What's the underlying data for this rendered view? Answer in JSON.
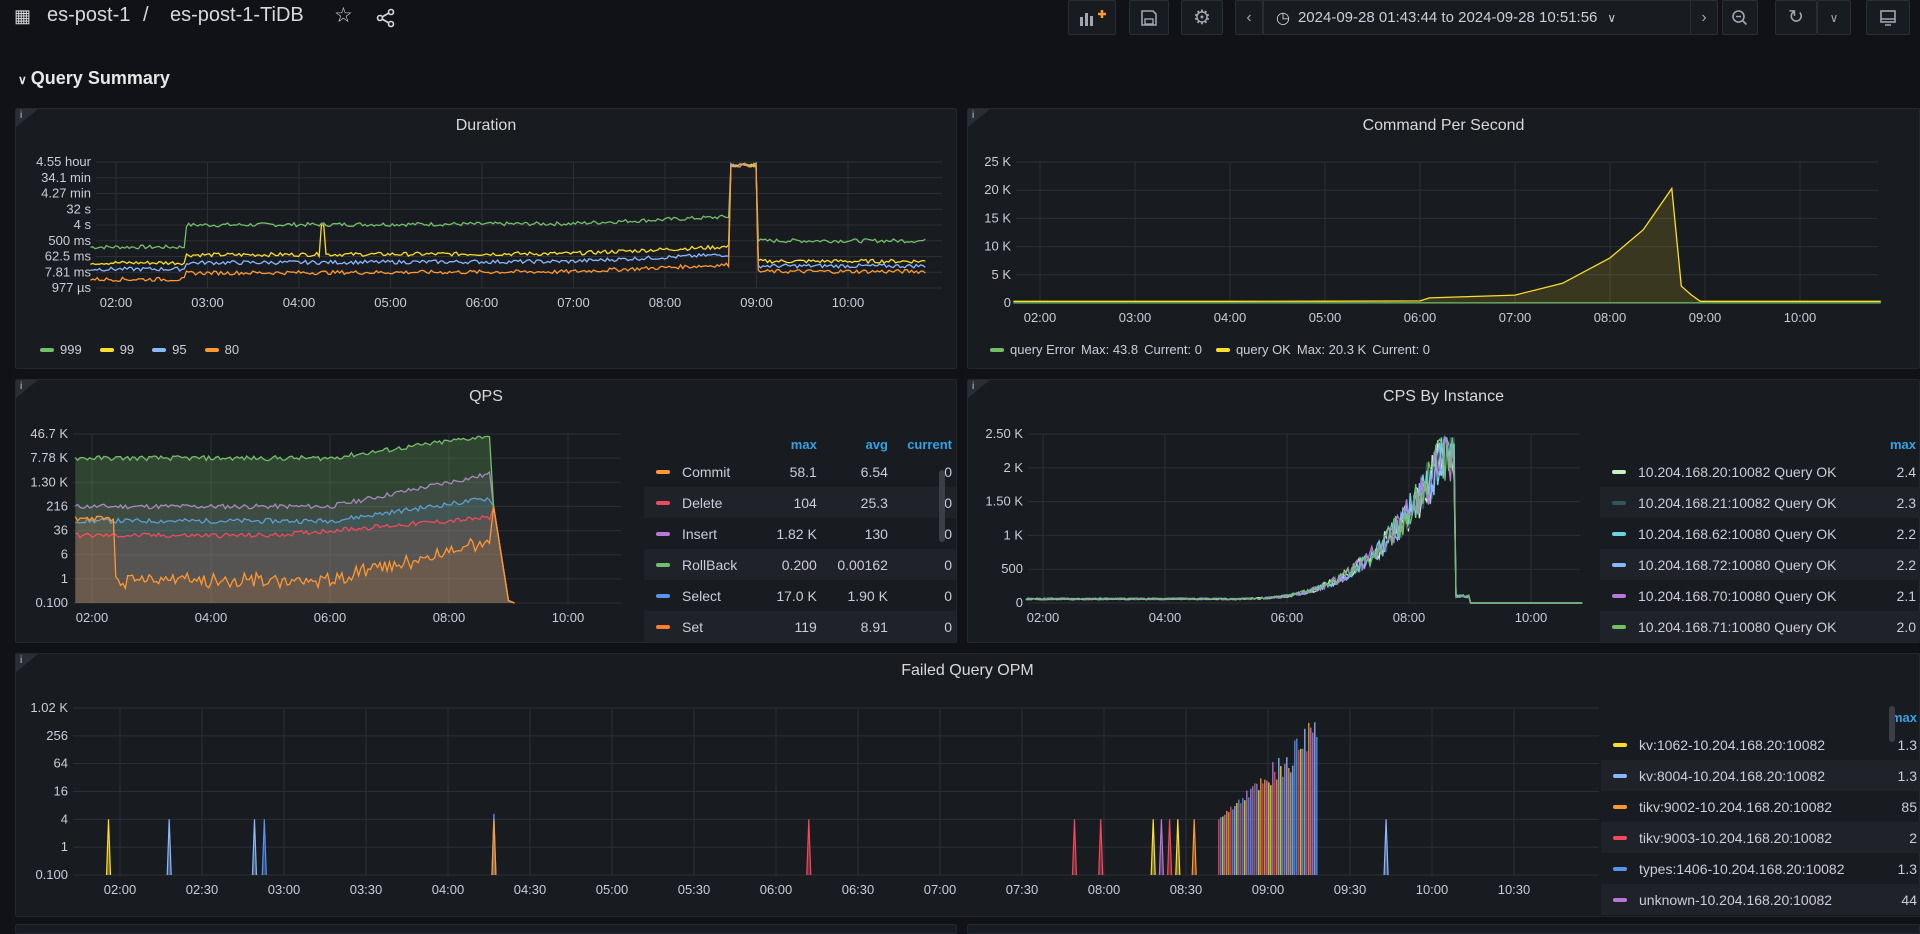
{
  "breadcrumb": {
    "folder": "es-post-1",
    "sep": "/",
    "dashboard": "es-post-1-TiDB"
  },
  "timerange": {
    "label": "2024-09-28 01:43:44 to 2024-09-28 10:51:56"
  },
  "row": {
    "title": "Query Summary"
  },
  "panels": {
    "duration": {
      "title": "Duration",
      "info": "i"
    },
    "cps": {
      "title": "Command Per Second",
      "info": "i"
    },
    "qps": {
      "title": "QPS",
      "info": "i"
    },
    "cpsinst": {
      "title": "CPS By Instance",
      "info": "i"
    },
    "failed": {
      "title": "Failed Query OPM",
      "info": "i"
    }
  },
  "colors": {
    "green": "#73bf69",
    "yellow": "#fade2a",
    "blue": "#5794f2",
    "lightblue": "#8ab8ff",
    "orange": "#ff9830",
    "red": "#f2495c",
    "purple": "#b877d9",
    "darkgreen": "#37872d",
    "teal": "#6ed0e0"
  },
  "chart_data": [
    {
      "type": "line",
      "title": "Duration",
      "y_ticks": [
        "4.55 hour",
        "34.1 min",
        "4.27 min",
        "32 s",
        "4 s",
        "500 ms",
        "62.5 ms",
        "7.81 ms",
        "977 µs"
      ],
      "x_ticks": [
        "02:00",
        "03:00",
        "04:00",
        "05:00",
        "06:00",
        "07:00",
        "08:00",
        "09:00",
        "10:00"
      ],
      "series": [
        {
          "name": "999",
          "color": "#73bf69"
        },
        {
          "name": "99",
          "color": "#fade2a"
        },
        {
          "name": "95",
          "color": "#8ab8ff"
        },
        {
          "name": "80",
          "color": "#ff9830"
        }
      ]
    },
    {
      "type": "area",
      "title": "Command Per Second",
      "y_ticks": [
        "25 K",
        "20 K",
        "15 K",
        "10 K",
        "5 K",
        "0"
      ],
      "ylim": [
        0,
        25000
      ],
      "x_ticks": [
        "02:00",
        "03:00",
        "04:00",
        "05:00",
        "06:00",
        "07:00",
        "08:00",
        "09:00",
        "10:00"
      ],
      "series": [
        {
          "name": "query Error",
          "color": "#73bf69",
          "max": "Max: 43.8",
          "current": "Current: 0"
        },
        {
          "name": "query OK",
          "color": "#fade2a",
          "max": "Max: 20.3 K",
          "current": "Current: 0"
        }
      ],
      "query_ok_points": [
        [
          1.72,
          300
        ],
        [
          2,
          300
        ],
        [
          3,
          300
        ],
        [
          4,
          300
        ],
        [
          5,
          320
        ],
        [
          6,
          380
        ],
        [
          6.1,
          900
        ],
        [
          7,
          1400
        ],
        [
          7.5,
          3500
        ],
        [
          8,
          8000
        ],
        [
          8.35,
          13000
        ],
        [
          8.65,
          20300
        ],
        [
          8.75,
          3000
        ],
        [
          8.85,
          1500
        ],
        [
          8.95,
          300
        ],
        [
          10.85,
          300
        ]
      ]
    },
    {
      "type": "area",
      "title": "QPS",
      "y_ticks": [
        "46.7 K",
        "7.78 K",
        "1.30 K",
        "216",
        "36",
        "6",
        "1",
        "0.100"
      ],
      "x_ticks": [
        "02:00",
        "04:00",
        "06:00",
        "08:00",
        "10:00"
      ],
      "columns": [
        "max",
        "avg",
        "current"
      ],
      "rows": [
        {
          "name": "Commit",
          "color": "#ff9830",
          "max": "58.1",
          "avg": "6.54",
          "current": "0"
        },
        {
          "name": "Delete",
          "color": "#f2495c",
          "max": "104",
          "avg": "25.3",
          "current": "0"
        },
        {
          "name": "Insert",
          "color": "#b877d9",
          "max": "1.82 K",
          "avg": "130",
          "current": "0"
        },
        {
          "name": "RollBack",
          "color": "#73bf69",
          "max": "0.200",
          "avg": "0.00162",
          "current": "0"
        },
        {
          "name": "Select",
          "color": "#5794f2",
          "max": "17.0 K",
          "avg": "1.90 K",
          "current": "0"
        },
        {
          "name": "Set",
          "color": "#ff7f2a",
          "max": "119",
          "avg": "8.91",
          "current": "0"
        }
      ]
    },
    {
      "type": "line",
      "title": "CPS By Instance",
      "y_ticks": [
        "2.50 K",
        "2 K",
        "1.50 K",
        "1 K",
        "500",
        "0"
      ],
      "ylim": [
        0,
        2500
      ],
      "x_ticks": [
        "02:00",
        "04:00",
        "06:00",
        "08:00",
        "10:00"
      ],
      "columns": [
        "max"
      ],
      "rows": [
        {
          "name": "10.204.168.20:10082 Query OK",
          "color": "#c8f2c2",
          "max": "2.4"
        },
        {
          "name": "10.204.168.21:10082 Query OK",
          "color": "#2f575e",
          "max": "2.3"
        },
        {
          "name": "10.204.168.62:10080 Query OK",
          "color": "#6ed0e0",
          "max": "2.2"
        },
        {
          "name": "10.204.168.72:10080 Query OK",
          "color": "#8ab8ff",
          "max": "2.2"
        },
        {
          "name": "10.204.168.70:10080 Query OK",
          "color": "#b877d9",
          "max": "2.1"
        },
        {
          "name": "10.204.168.71:10080 Query OK",
          "color": "#73bf69",
          "max": "2.0"
        }
      ]
    },
    {
      "type": "bar",
      "title": "Failed Query OPM",
      "y_ticks": [
        "1.02 K",
        "256",
        "64",
        "16",
        "4",
        "1",
        "0.100"
      ],
      "x_ticks": [
        "02:00",
        "02:30",
        "03:00",
        "03:30",
        "04:00",
        "04:30",
        "05:00",
        "05:30",
        "06:00",
        "06:30",
        "07:00",
        "07:30",
        "08:00",
        "08:30",
        "09:00",
        "09:30",
        "10:00",
        "10:30"
      ],
      "columns": [
        "max"
      ],
      "rows": [
        {
          "name": "kv:1062-10.204.168.20:10082",
          "color": "#fade2a",
          "max": "1.3"
        },
        {
          "name": "kv:8004-10.204.168.20:10082",
          "color": "#8ab8ff",
          "max": "1.3"
        },
        {
          "name": "tikv:9002-10.204.168.20:10082",
          "color": "#ff9830",
          "max": "85"
        },
        {
          "name": "tikv:9003-10.204.168.20:10082",
          "color": "#f2495c",
          "max": "2"
        },
        {
          "name": "types:1406-10.204.168.20:10082",
          "color": "#5794f2",
          "max": "1.3"
        },
        {
          "name": "unknown-10.204.168.20:10082",
          "color": "#b877d9",
          "max": "44"
        }
      ]
    }
  ]
}
